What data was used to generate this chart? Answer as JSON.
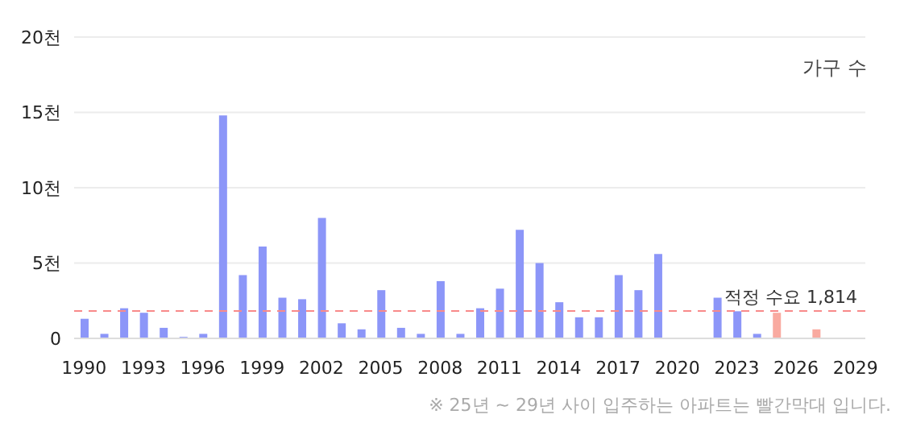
{
  "chart_data": {
    "type": "bar",
    "ylabel": "가구 수",
    "categories": [
      "1990",
      null,
      null,
      "1993",
      null,
      null,
      "1996",
      null,
      null,
      "1999",
      null,
      null,
      "2002",
      null,
      null,
      "2005",
      null,
      null,
      "2008",
      null,
      null,
      "2011",
      null,
      null,
      "2014",
      null,
      null,
      "2017",
      null,
      null,
      "2020",
      null,
      null,
      "2023",
      null,
      null,
      "2026",
      null,
      null,
      "2029"
    ],
    "values": [
      1.3,
      0.3,
      2.0,
      1.7,
      0.7,
      0.1,
      0.3,
      14.8,
      4.2,
      6.1,
      2.7,
      2.6,
      8.0,
      1.0,
      0.6,
      3.2,
      0.7,
      0.3,
      3.8,
      0.3,
      2.0,
      3.3,
      7.2,
      5.0,
      2.4,
      1.4,
      1.4,
      4.2,
      3.2,
      5.6,
      null,
      null,
      2.7,
      1.8,
      0.3,
      1.7,
      null,
      0.6,
      null,
      null
    ],
    "colors": [
      "#8c96f8",
      "#8c96f8",
      "#8c96f8",
      "#8c96f8",
      "#8c96f8",
      "#8c96f8",
      "#8c96f8",
      "#8c96f8",
      "#8c96f8",
      "#8c96f8",
      "#8c96f8",
      "#8c96f8",
      "#8c96f8",
      "#8c96f8",
      "#8c96f8",
      "#8c96f8",
      "#8c96f8",
      "#8c96f8",
      "#8c96f8",
      "#8c96f8",
      "#8c96f8",
      "#8c96f8",
      "#8c96f8",
      "#8c96f8",
      "#8c96f8",
      "#8c96f8",
      "#8c96f8",
      "#8c96f8",
      "#8c96f8",
      "#8c96f8",
      "#8c96f8",
      "#8c96f8",
      "#8c96f8",
      "#8c96f8",
      "#8c96f8",
      "#f9aaa0",
      "#f9aaa0",
      "#f9aaa0",
      "#f9aaa0",
      "#f9aaa0"
    ],
    "ylim": [
      0,
      20
    ],
    "yticks": [
      0,
      {
        "value": 5,
        "label": "5천"
      },
      {
        "value": 10,
        "label": "10천"
      },
      {
        "value": 15,
        "label": "15천"
      },
      {
        "value": 20,
        "label": "20천"
      }
    ],
    "grid": "y",
    "ref_lines": [
      {
        "axis": "y",
        "value": 1.814,
        "label": "적정 수요 1,814",
        "color": "#f88a8a",
        "line_style": "dashed"
      }
    ],
    "annotations": [
      "※ 25년 ~ 29년 사이 입주하는 아파트는 빨간막대 입니다."
    ]
  }
}
